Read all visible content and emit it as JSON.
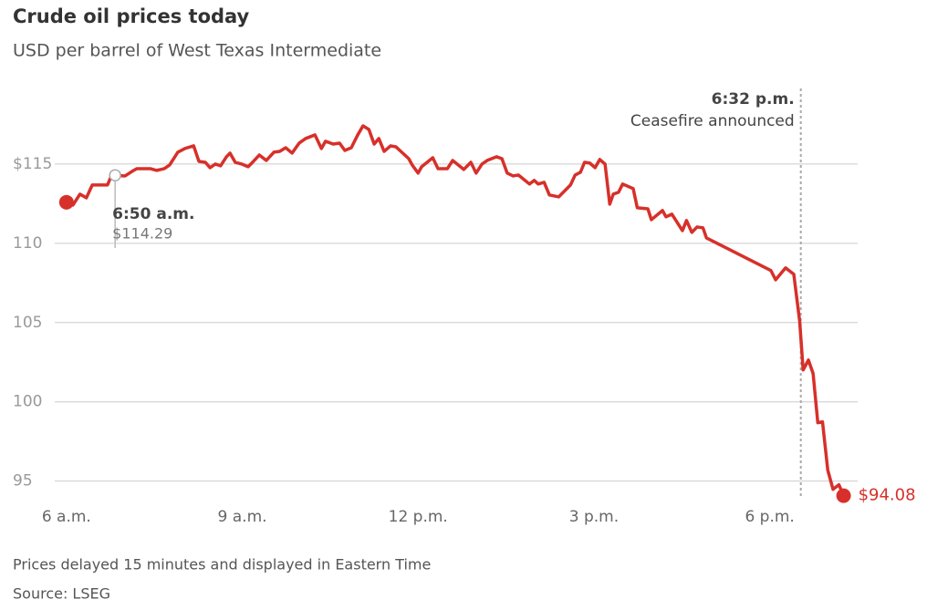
{
  "chart_data": {
    "type": "line",
    "title": "Crude oil prices today",
    "subtitle": "USD per barrel of West Texas Intermediate",
    "notes": [
      "Prices delayed 15 minutes and displayed in Eastern Time",
      "Source: LSEG"
    ],
    "xlim": [
      5.8,
      19.5
    ],
    "xticks": [
      {
        "value": 6,
        "label": "6 a.m."
      },
      {
        "value": 9,
        "label": "9 a.m."
      },
      {
        "value": 12,
        "label": "12 p.m."
      },
      {
        "value": 15,
        "label": "3 p.m."
      },
      {
        "value": 18,
        "label": "6 p.m."
      }
    ],
    "ylim": [
      94,
      120
    ],
    "yticks": [
      95,
      100,
      105,
      110,
      {
        "value": 115,
        "label": "$115"
      }
    ],
    "grid": true,
    "series": [
      {
        "color": "#d7302a",
        "x": [
          6.0,
          6.11,
          6.23,
          6.34,
          6.44,
          6.7,
          6.76,
          6.83,
          7.0,
          7.12,
          7.2,
          7.43,
          7.54,
          7.67,
          7.76,
          7.9,
          8.02,
          8.17,
          8.26,
          8.37,
          8.45,
          8.54,
          8.63,
          8.73,
          8.79,
          8.88,
          8.99,
          9.1,
          9.19,
          9.29,
          9.41,
          9.54,
          9.64,
          9.74,
          9.85,
          9.97,
          10.08,
          10.24,
          10.35,
          10.42,
          10.55,
          10.66,
          10.75,
          10.86,
          10.97,
          11.06,
          11.16,
          11.25,
          11.33,
          11.42,
          11.53,
          11.62,
          11.72,
          11.84,
          11.9,
          12.0,
          12.06,
          12.25,
          12.34,
          12.5,
          12.59,
          12.78,
          12.9,
          12.99,
          13.09,
          13.18,
          13.34,
          13.43,
          13.52,
          13.62,
          13.71,
          13.9,
          13.98,
          14.05,
          14.15,
          14.24,
          14.4,
          14.6,
          14.68,
          14.77,
          14.84,
          14.93,
          15.02,
          15.1,
          15.19,
          15.27,
          15.33,
          15.42,
          15.49,
          15.67,
          15.74,
          15.92,
          15.98,
          16.17,
          16.23,
          16.33,
          16.51,
          16.58,
          16.67,
          16.76,
          16.86,
          16.92,
          18.02,
          18.1,
          18.27,
          18.41,
          18.51,
          18.57,
          18.66,
          18.74,
          18.82,
          18.9,
          18.99,
          19.08,
          19.18,
          19.26
        ],
        "values": [
          112.59,
          112.41,
          113.1,
          112.87,
          113.68,
          113.68,
          114.2,
          114.29,
          114.25,
          114.54,
          114.71,
          114.71,
          114.6,
          114.71,
          114.94,
          115.75,
          115.98,
          116.15,
          115.17,
          115.11,
          114.77,
          115.0,
          114.89,
          115.46,
          115.69,
          115.11,
          115.0,
          114.83,
          115.17,
          115.57,
          115.23,
          115.75,
          115.8,
          116.03,
          115.69,
          116.32,
          116.61,
          116.84,
          115.98,
          116.44,
          116.26,
          116.32,
          115.86,
          116.03,
          116.84,
          117.41,
          117.18,
          116.26,
          116.61,
          115.8,
          116.15,
          116.09,
          115.75,
          115.34,
          114.94,
          114.43,
          114.83,
          115.4,
          114.71,
          114.71,
          115.23,
          114.66,
          115.11,
          114.43,
          115.0,
          115.23,
          115.46,
          115.34,
          114.43,
          114.25,
          114.31,
          113.74,
          113.97,
          113.74,
          113.85,
          113.05,
          112.93,
          113.68,
          114.31,
          114.48,
          115.11,
          115.06,
          114.77,
          115.29,
          115.0,
          112.47,
          113.1,
          113.22,
          113.74,
          113.45,
          112.24,
          112.18,
          111.49,
          112.07,
          111.67,
          111.84,
          110.8,
          111.44,
          110.69,
          111.03,
          110.98,
          110.34,
          108.28,
          107.7,
          108.45,
          108.05,
          105.11,
          102.01,
          102.64,
          101.78,
          98.68,
          98.74,
          95.69,
          94.48,
          94.77,
          94.08
        ],
        "end_label": "$94.08"
      }
    ],
    "annotations": [
      {
        "x": 6.83,
        "y": 114.29,
        "label": "6:50 a.m.",
        "value_label": "$114.29"
      }
    ],
    "events": [
      {
        "x": 18.53,
        "label": "6:32 p.m.",
        "text": "Ceasefire announced"
      }
    ]
  }
}
